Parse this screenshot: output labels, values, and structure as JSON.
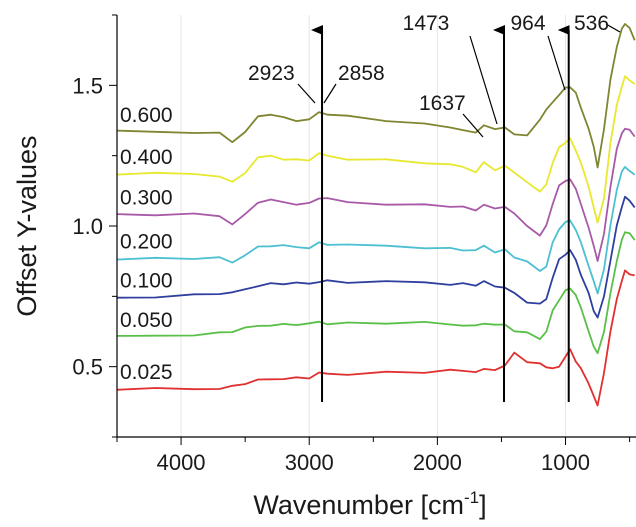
{
  "chart_data": {
    "type": "line",
    "title": "",
    "xlabel_main": "Wavenumber [cm",
    "xlabel_sup": "-1",
    "xlabel_end": "]",
    "ylabel": "Offset Y-values",
    "xlim": [
      4500,
      450
    ],
    "ylim": [
      0.25,
      1.75
    ],
    "x_ticks": [
      4000,
      3000,
      2000,
      1000
    ],
    "x_tick_labels": [
      "4000",
      "3000",
      "2000",
      "1000"
    ],
    "y_ticks": [
      0.5,
      1.0,
      1.5
    ],
    "y_tick_labels": [
      "0.5",
      "1.0",
      "1.5"
    ],
    "grid": "vertical",
    "x": [
      4500,
      4200,
      3900,
      3700,
      3600,
      3500,
      3400,
      3300,
      3200,
      3100,
      3000,
      2923,
      2858,
      2700,
      2400,
      2100,
      1900,
      1800,
      1700,
      1637,
      1550,
      1473,
      1400,
      1300,
      1200,
      1150,
      1100,
      1050,
      1000,
      964,
      920,
      880,
      820,
      780,
      750,
      700,
      650,
      600,
      560,
      536,
      500,
      460
    ],
    "series": [
      {
        "name": "0.600",
        "color": "#7f8530",
        "values": [
          1.335,
          1.335,
          1.335,
          1.33,
          1.3,
          1.33,
          1.39,
          1.4,
          1.385,
          1.375,
          1.375,
          1.405,
          1.4,
          1.39,
          1.375,
          1.36,
          1.35,
          1.345,
          1.33,
          1.36,
          1.34,
          1.35,
          1.33,
          1.32,
          1.38,
          1.41,
          1.44,
          1.47,
          1.49,
          1.495,
          1.47,
          1.42,
          1.35,
          1.28,
          1.21,
          1.34,
          1.52,
          1.64,
          1.7,
          1.72,
          1.7,
          1.66
        ]
      },
      {
        "name": "0.400",
        "color": "#e8e830",
        "values": [
          1.185,
          1.185,
          1.185,
          1.18,
          1.155,
          1.19,
          1.24,
          1.25,
          1.24,
          1.235,
          1.235,
          1.255,
          1.25,
          1.24,
          1.235,
          1.225,
          1.215,
          1.21,
          1.195,
          1.225,
          1.2,
          1.21,
          1.19,
          1.16,
          1.12,
          1.15,
          1.22,
          1.28,
          1.3,
          1.31,
          1.27,
          1.22,
          1.14,
          1.07,
          1.01,
          1.1,
          1.29,
          1.43,
          1.5,
          1.53,
          1.52,
          1.5
        ]
      },
      {
        "name": "0.300",
        "color": "#a85aa8",
        "values": [
          1.04,
          1.04,
          1.04,
          1.035,
          1.01,
          1.04,
          1.085,
          1.09,
          1.085,
          1.08,
          1.08,
          1.1,
          1.095,
          1.085,
          1.08,
          1.075,
          1.07,
          1.065,
          1.055,
          1.08,
          1.06,
          1.07,
          1.04,
          1.0,
          0.97,
          1.0,
          1.08,
          1.14,
          1.16,
          1.17,
          1.13,
          1.08,
          0.99,
          0.93,
          0.88,
          0.97,
          1.14,
          1.27,
          1.33,
          1.35,
          1.34,
          1.32
        ]
      },
      {
        "name": "0.200",
        "color": "#4cc0d0",
        "values": [
          0.885,
          0.885,
          0.885,
          0.885,
          0.87,
          0.9,
          0.925,
          0.93,
          0.928,
          0.925,
          0.925,
          0.94,
          0.935,
          0.93,
          0.93,
          0.925,
          0.92,
          0.915,
          0.91,
          0.93,
          0.91,
          0.915,
          0.89,
          0.87,
          0.84,
          0.86,
          0.94,
          0.99,
          1.01,
          1.02,
          0.99,
          0.94,
          0.86,
          0.8,
          0.76,
          0.85,
          1.0,
          1.13,
          1.19,
          1.21,
          1.2,
          1.18
        ]
      },
      {
        "name": "0.100",
        "color": "#2e3f9e",
        "values": [
          0.745,
          0.75,
          0.755,
          0.76,
          0.76,
          0.775,
          0.79,
          0.795,
          0.795,
          0.795,
          0.795,
          0.805,
          0.805,
          0.8,
          0.8,
          0.8,
          0.795,
          0.795,
          0.79,
          0.8,
          0.785,
          0.785,
          0.76,
          0.73,
          0.72,
          0.74,
          0.82,
          0.88,
          0.9,
          0.91,
          0.88,
          0.83,
          0.76,
          0.7,
          0.67,
          0.75,
          0.88,
          1.0,
          1.07,
          1.1,
          1.09,
          1.07
        ]
      },
      {
        "name": "0.050",
        "color": "#5abf48",
        "values": [
          0.605,
          0.61,
          0.615,
          0.62,
          0.625,
          0.635,
          0.645,
          0.65,
          0.65,
          0.65,
          0.65,
          0.66,
          0.655,
          0.655,
          0.655,
          0.655,
          0.65,
          0.65,
          0.645,
          0.655,
          0.645,
          0.65,
          0.63,
          0.62,
          0.6,
          0.62,
          0.7,
          0.74,
          0.77,
          0.78,
          0.75,
          0.71,
          0.63,
          0.57,
          0.55,
          0.62,
          0.76,
          0.88,
          0.95,
          0.98,
          0.97,
          0.95
        ]
      },
      {
        "name": "0.025",
        "color": "#e03030",
        "values": [
          0.42,
          0.42,
          0.42,
          0.425,
          0.43,
          0.44,
          0.45,
          0.455,
          0.46,
          0.46,
          0.46,
          0.475,
          0.475,
          0.475,
          0.48,
          0.48,
          0.485,
          0.485,
          0.485,
          0.49,
          0.49,
          0.5,
          0.55,
          0.52,
          0.51,
          0.5,
          0.49,
          0.5,
          0.54,
          0.56,
          0.52,
          0.49,
          0.44,
          0.4,
          0.36,
          0.48,
          0.62,
          0.74,
          0.81,
          0.84,
          0.83,
          0.82
        ]
      }
    ],
    "annotations": [
      {
        "label": "2923",
        "x": 2923
      },
      {
        "label": "2858",
        "x": 2858
      },
      {
        "label": "1637",
        "x": 1637
      },
      {
        "label": "1473",
        "x": 1473
      },
      {
        "label": "964",
        "x": 964
      },
      {
        "label": "536",
        "x": 536
      }
    ],
    "arrows_x": [
      2900,
      1480,
      975
    ]
  }
}
